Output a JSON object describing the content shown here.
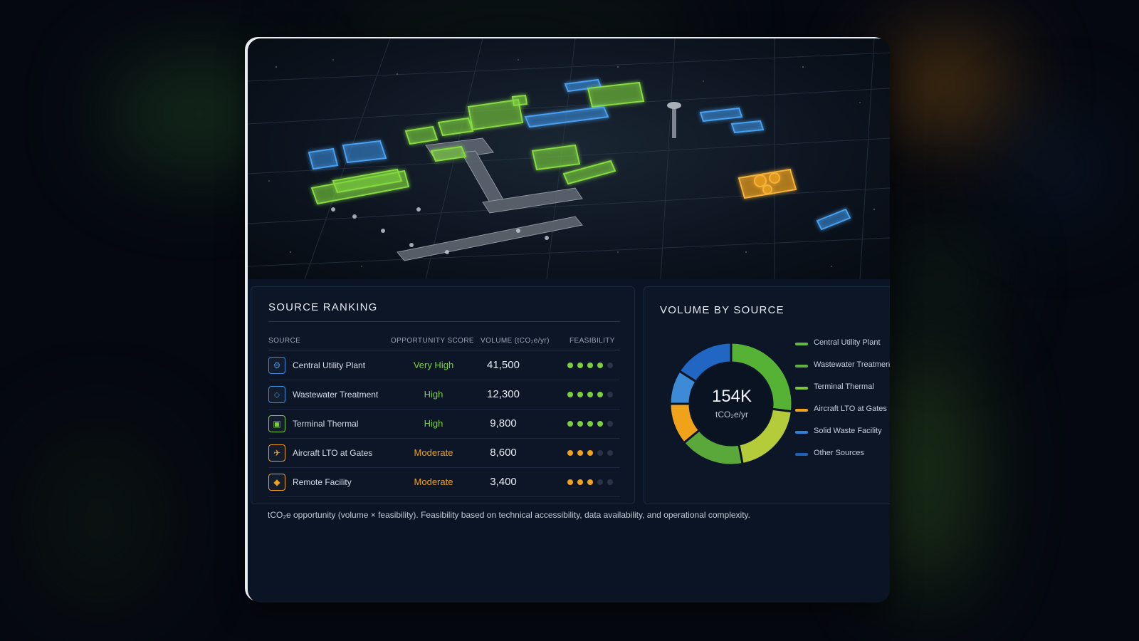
{
  "ranking": {
    "title": "SOURCE RANKING",
    "columns": {
      "source": "SOURCE",
      "score": "OPPORTUNITY SCORE",
      "volume": "VOLUME (tCO₂e/yr)",
      "feasibility": "FEASIBILITY"
    },
    "rows": [
      {
        "icon": "gear-icon",
        "name": "Central Utility Plant",
        "score": "Very High",
        "volume": "41,500",
        "feasibility": 4
      },
      {
        "icon": "water-drop-icon",
        "name": "Wastewater Treatment",
        "score": "High",
        "volume": "12,300",
        "feasibility": 4
      },
      {
        "icon": "building-icon",
        "name": "Terminal Thermal",
        "score": "High",
        "volume": "9,800",
        "feasibility": 4
      },
      {
        "icon": "plane-icon",
        "name": "Aircraft LTO at Gates",
        "score": "Moderate",
        "volume": "8,600",
        "feasibility": 3
      },
      {
        "icon": "factory-icon",
        "name": "Remote Facility",
        "score": "Moderate",
        "volume": "3,400",
        "feasibility": 3
      }
    ]
  },
  "volume": {
    "title": "VOLUME BY SOURCE",
    "total_value": "154K",
    "total_unit": "tCO₂e/yr",
    "legend": [
      {
        "label": "Central Utility Plant",
        "color": "#62b83a"
      },
      {
        "label": "Wastewater Treatment",
        "color": "#5fb23c"
      },
      {
        "label": "Terminal Thermal",
        "color": "#7cc43e"
      },
      {
        "label": "Aircraft LTO at Gates",
        "color": "#f0a21a"
      },
      {
        "label": "Solid Waste Facility",
        "color": "#2f7fd6"
      },
      {
        "label": "Other Sources",
        "color": "#1f5fb4"
      }
    ]
  },
  "chart_data": {
    "type": "pie",
    "title": "VOLUME BY SOURCE",
    "center_label": "154K",
    "center_unit": "tCO₂e/yr",
    "slices": [
      {
        "name": "Central Utility Plant",
        "value": 27
      },
      {
        "name": "Terminal Thermal",
        "value": 20
      },
      {
        "name": "Wastewater Treatment",
        "value": 17
      },
      {
        "name": "Aircraft LTO at Gates",
        "value": 11
      },
      {
        "name": "Solid Waste Facility",
        "value": 9
      },
      {
        "name": "Other Sources",
        "value": 16
      }
    ],
    "slice_colors": [
      "#56b234",
      "#b5cc3a",
      "#5aa83a",
      "#f0a21a",
      "#3d8ad6",
      "#2166c2"
    ]
  },
  "footnote": "tCO₂e opportunity (volume × feasibility). Feasibility based on technical accessibility, data availability, and operational complexity.",
  "colors": {
    "green": "#7ccf3c",
    "orange": "#f0a21a",
    "blue": "#3a8ee0",
    "dot_off": "#2a3446"
  }
}
